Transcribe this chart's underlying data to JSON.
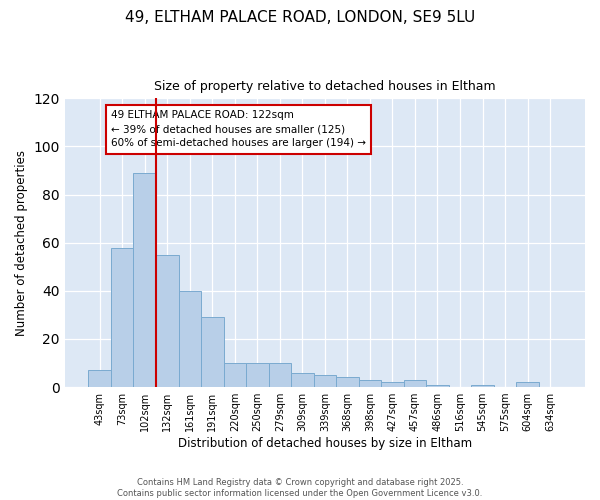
{
  "title": "49, ELTHAM PALACE ROAD, LONDON, SE9 5LU",
  "subtitle": "Size of property relative to detached houses in Eltham",
  "xlabel": "Distribution of detached houses by size in Eltham",
  "ylabel": "Number of detached properties",
  "bar_color": "#b8cfe8",
  "bar_edge_color": "#7aaad0",
  "background_color": "#dde8f5",
  "categories": [
    "43sqm",
    "73sqm",
    "102sqm",
    "132sqm",
    "161sqm",
    "191sqm",
    "220sqm",
    "250sqm",
    "279sqm",
    "309sqm",
    "339sqm",
    "368sqm",
    "398sqm",
    "427sqm",
    "457sqm",
    "486sqm",
    "516sqm",
    "545sqm",
    "575sqm",
    "604sqm",
    "634sqm"
  ],
  "values": [
    7,
    58,
    89,
    55,
    40,
    29,
    10,
    10,
    10,
    6,
    5,
    4,
    3,
    2,
    3,
    1,
    0,
    1,
    0,
    2,
    0
  ],
  "ylim": [
    0,
    120
  ],
  "yticks": [
    0,
    20,
    40,
    60,
    80,
    100,
    120
  ],
  "vline_color": "#cc0000",
  "annotation_title": "49 ELTHAM PALACE ROAD: 122sqm",
  "annotation_line1": "← 39% of detached houses are smaller (125)",
  "annotation_line2": "60% of semi-detached houses are larger (194) →",
  "annotation_box_color": "#ffffff",
  "annotation_box_edge": "#cc0000",
  "footer1": "Contains HM Land Registry data © Crown copyright and database right 2025.",
  "footer2": "Contains public sector information licensed under the Open Government Licence v3.0."
}
